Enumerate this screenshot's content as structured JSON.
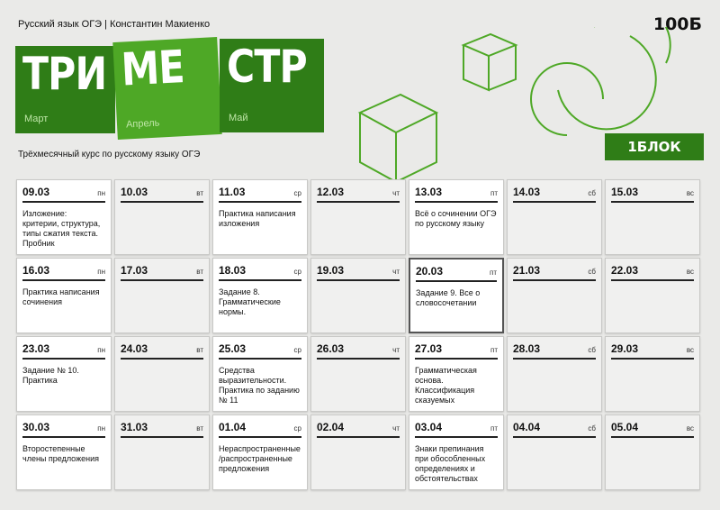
{
  "header": {
    "course": "Русский язык ОГЭ | Константин Макиенко",
    "logo": "100Б",
    "subtitle": "Трёхмесячный курс по русскому языку ОГЭ",
    "block_badge": "1БЛОК"
  },
  "title_blocks": [
    {
      "text": "ТРИ",
      "month": "Март"
    },
    {
      "text": "МЕ",
      "month": "Апрель"
    },
    {
      "text": "СТР",
      "month": "Май"
    }
  ],
  "colors": {
    "dark_green": "#2f7d17",
    "light_green": "#4ea826"
  },
  "days": [
    {
      "date": "09.03",
      "wd": "пн",
      "text": "Изложение: критерии, структура, типы сжатия текста. Пробник"
    },
    {
      "date": "10.03",
      "wd": "вт",
      "text": ""
    },
    {
      "date": "11.03",
      "wd": "ср",
      "text": "Практика написания изложения"
    },
    {
      "date": "12.03",
      "wd": "чт",
      "text": ""
    },
    {
      "date": "13.03",
      "wd": "пт",
      "text": "Всё о сочинении ОГЭ по русскому языку"
    },
    {
      "date": "14.03",
      "wd": "сб",
      "text": ""
    },
    {
      "date": "15.03",
      "wd": "вс",
      "text": ""
    },
    {
      "date": "16.03",
      "wd": "пн",
      "text": "Практика написания сочинения"
    },
    {
      "date": "17.03",
      "wd": "вт",
      "text": ""
    },
    {
      "date": "18.03",
      "wd": "ср",
      "text": "Задание 8. Грамматические нормы."
    },
    {
      "date": "19.03",
      "wd": "чт",
      "text": ""
    },
    {
      "date": "20.03",
      "wd": "пт",
      "text": "Задание 9. Все о словосочетании"
    },
    {
      "date": "21.03",
      "wd": "сб",
      "text": ""
    },
    {
      "date": "22.03",
      "wd": "вс",
      "text": ""
    },
    {
      "date": "23.03",
      "wd": "пн",
      "text": "Задание № 10. Практика"
    },
    {
      "date": "24.03",
      "wd": "вт",
      "text": ""
    },
    {
      "date": "25.03",
      "wd": "ср",
      "text": "Средства выразительности. Практика по заданию № 11"
    },
    {
      "date": "26.03",
      "wd": "чт",
      "text": ""
    },
    {
      "date": "27.03",
      "wd": "пт",
      "text": "Грамматическая основа. Классификация сказуемых"
    },
    {
      "date": "28.03",
      "wd": "сб",
      "text": ""
    },
    {
      "date": "29.03",
      "wd": "вс",
      "text": ""
    },
    {
      "date": "30.03",
      "wd": "пн",
      "text": "Второстепенные члены предложения"
    },
    {
      "date": "31.03",
      "wd": "вт",
      "text": ""
    },
    {
      "date": "01.04",
      "wd": "ср",
      "text": "Нераспространенные /распространенные предложения"
    },
    {
      "date": "02.04",
      "wd": "чт",
      "text": ""
    },
    {
      "date": "03.04",
      "wd": "пт",
      "text": "Знаки препинания при обособленных определениях и обстоятельствах"
    },
    {
      "date": "04.04",
      "wd": "сб",
      "text": ""
    },
    {
      "date": "05.04",
      "wd": "вс",
      "text": ""
    }
  ]
}
